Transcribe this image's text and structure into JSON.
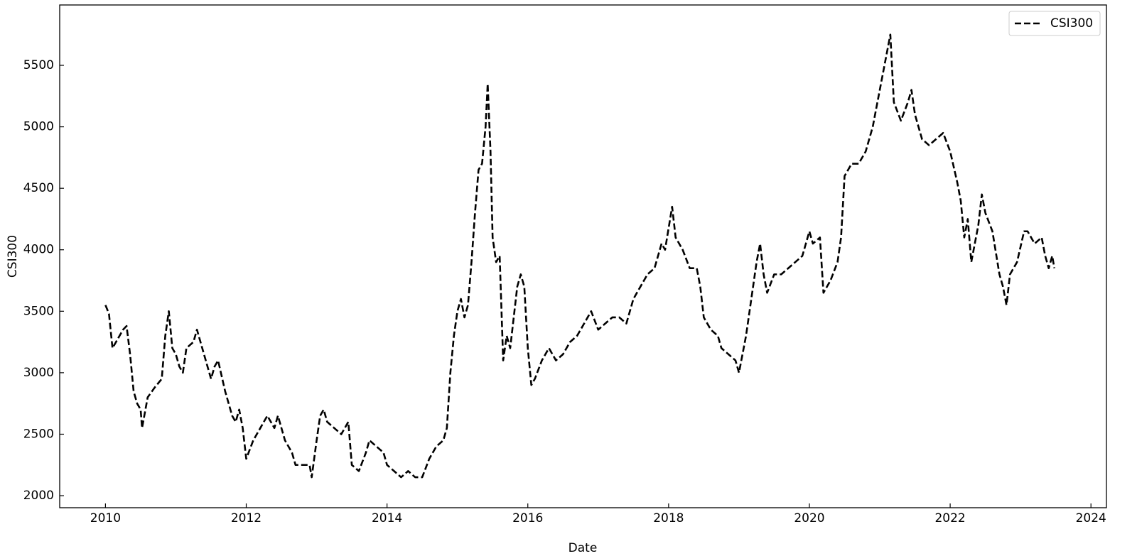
{
  "chart_data": {
    "type": "line",
    "x_label": "Date",
    "y_label": "CSI300",
    "x": [
      2010.0,
      2010.05,
      2010.1,
      2010.15,
      2010.2,
      2010.25,
      2010.3,
      2010.35,
      2010.4,
      2010.45,
      2010.5,
      2010.52,
      2010.6,
      2010.7,
      2010.8,
      2010.85,
      2010.9,
      2010.95,
      2011.0,
      2011.05,
      2011.1,
      2011.15,
      2011.25,
      2011.3,
      2011.4,
      2011.5,
      2011.55,
      2011.6,
      2011.7,
      2011.8,
      2011.85,
      2011.9,
      2011.95,
      2012.0,
      2012.1,
      2012.2,
      2012.3,
      2012.4,
      2012.45,
      2012.55,
      2012.65,
      2012.7,
      2012.8,
      2012.9,
      2012.93,
      2013.0,
      2013.05,
      2013.1,
      2013.15,
      2013.25,
      2013.35,
      2013.45,
      2013.5,
      2013.6,
      2013.7,
      2013.75,
      2013.85,
      2013.95,
      2014.0,
      2014.1,
      2014.2,
      2014.3,
      2014.4,
      2014.5,
      2014.6,
      2014.7,
      2014.8,
      2014.85,
      2014.9,
      2014.95,
      2015.0,
      2015.05,
      2015.1,
      2015.15,
      2015.2,
      2015.25,
      2015.3,
      2015.35,
      2015.4,
      2015.43,
      2015.47,
      2015.5,
      2015.55,
      2015.6,
      2015.65,
      2015.7,
      2015.75,
      2015.8,
      2015.85,
      2015.9,
      2015.95,
      2016.0,
      2016.05,
      2016.1,
      2016.2,
      2016.3,
      2016.4,
      2016.5,
      2016.6,
      2016.7,
      2016.8,
      2016.9,
      2017.0,
      2017.1,
      2017.2,
      2017.3,
      2017.4,
      2017.5,
      2017.6,
      2017.7,
      2017.8,
      2017.9,
      2017.95,
      2018.05,
      2018.1,
      2018.2,
      2018.3,
      2018.4,
      2018.45,
      2018.5,
      2018.6,
      2018.7,
      2018.75,
      2018.85,
      2018.95,
      2019.0,
      2019.1,
      2019.2,
      2019.25,
      2019.3,
      2019.35,
      2019.4,
      2019.5,
      2019.6,
      2019.7,
      2019.8,
      2019.9,
      2019.95,
      2020.0,
      2020.05,
      2020.15,
      2020.2,
      2020.3,
      2020.4,
      2020.45,
      2020.5,
      2020.6,
      2020.7,
      2020.8,
      2020.9,
      2021.0,
      2021.1,
      2021.15,
      2021.2,
      2021.3,
      2021.4,
      2021.45,
      2021.5,
      2021.6,
      2021.7,
      2021.8,
      2021.9,
      2022.0,
      2022.1,
      2022.15,
      2022.2,
      2022.25,
      2022.3,
      2022.4,
      2022.45,
      2022.5,
      2022.6,
      2022.7,
      2022.75,
      2022.8,
      2022.85,
      2022.95,
      2023.05,
      2023.1,
      2023.2,
      2023.3,
      2023.35,
      2023.4,
      2023.45,
      2023.48
    ],
    "series": [
      {
        "name": "CSI300",
        "color": "#000000",
        "dashed": true,
        "values": [
          3550,
          3480,
          3200,
          3250,
          3300,
          3350,
          3380,
          3150,
          2850,
          2750,
          2700,
          2550,
          2800,
          2880,
          2950,
          3300,
          3500,
          3200,
          3150,
          3050,
          3000,
          3200,
          3250,
          3350,
          3150,
          2950,
          3050,
          3100,
          2850,
          2650,
          2600,
          2700,
          2550,
          2300,
          2450,
          2550,
          2650,
          2550,
          2650,
          2450,
          2350,
          2250,
          2250,
          2250,
          2150,
          2450,
          2650,
          2700,
          2600,
          2550,
          2500,
          2600,
          2250,
          2200,
          2350,
          2450,
          2400,
          2350,
          2250,
          2200,
          2150,
          2200,
          2150,
          2150,
          2300,
          2400,
          2450,
          2550,
          3000,
          3300,
          3500,
          3600,
          3450,
          3550,
          3900,
          4300,
          4650,
          4700,
          5000,
          5350,
          4800,
          4100,
          3900,
          3950,
          3100,
          3300,
          3200,
          3450,
          3700,
          3800,
          3700,
          3200,
          2900,
          2950,
          3100,
          3200,
          3100,
          3150,
          3250,
          3300,
          3400,
          3500,
          3350,
          3400,
          3450,
          3450,
          3400,
          3600,
          3700,
          3800,
          3850,
          4050,
          4000,
          4350,
          4100,
          4000,
          3850,
          3850,
          3700,
          3450,
          3350,
          3300,
          3200,
          3150,
          3100,
          3000,
          3300,
          3700,
          3900,
          4050,
          3800,
          3650,
          3800,
          3800,
          3850,
          3900,
          3950,
          4050,
          4150,
          4050,
          4100,
          3650,
          3750,
          3900,
          4100,
          4600,
          4700,
          4700,
          4800,
          5000,
          5300,
          5600,
          5750,
          5200,
          5050,
          5200,
          5300,
          5100,
          4900,
          4850,
          4900,
          4950,
          4800,
          4550,
          4400,
          4100,
          4250,
          3900,
          4200,
          4450,
          4300,
          4150,
          3800,
          3700,
          3550,
          3800,
          3900,
          4150,
          4150,
          4050,
          4100,
          3950,
          3850,
          3950,
          3850
        ]
      }
    ],
    "xlim": [
      2009.35,
      2024.22
    ],
    "xticks": [
      2010,
      2012,
      2014,
      2016,
      2018,
      2020,
      2022,
      2024
    ],
    "ylim": [
      1902,
      5991
    ],
    "yticks": [
      2000,
      2500,
      3000,
      3500,
      4000,
      4500,
      5000,
      5500
    ],
    "legend": "upper right"
  }
}
